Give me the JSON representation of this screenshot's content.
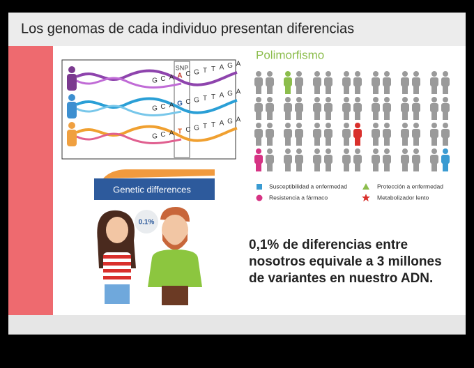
{
  "slide": {
    "title": "Los genomas de cada individuo presentan diferencias",
    "dna": {
      "label": "SNP",
      "sequences": [
        [
          "G",
          "C",
          "A",
          "A",
          "C",
          "G",
          "T",
          "T",
          "A",
          "G",
          "A"
        ],
        [
          "G",
          "C",
          "A",
          "G",
          "C",
          "G",
          "T",
          "T",
          "A",
          "G",
          "A"
        ],
        [
          "G",
          "C",
          "A",
          "T",
          "C",
          "G",
          "T",
          "T",
          "A",
          "G",
          "A"
        ]
      ]
    },
    "banner": "Genetic differences",
    "bubble": "0.1%",
    "polymorphism": {
      "title": "Polimorfismo",
      "legend": [
        "Susceptibilidad a enfermedad",
        "Protección a enfermedad",
        "Resistencia a fármaco",
        "Metabolizador lento"
      ]
    },
    "statement": [
      "0,1% de diferencias entre",
      "nosotros equivale a 3 millones",
      "de variantes en nuestro ADN."
    ]
  }
}
